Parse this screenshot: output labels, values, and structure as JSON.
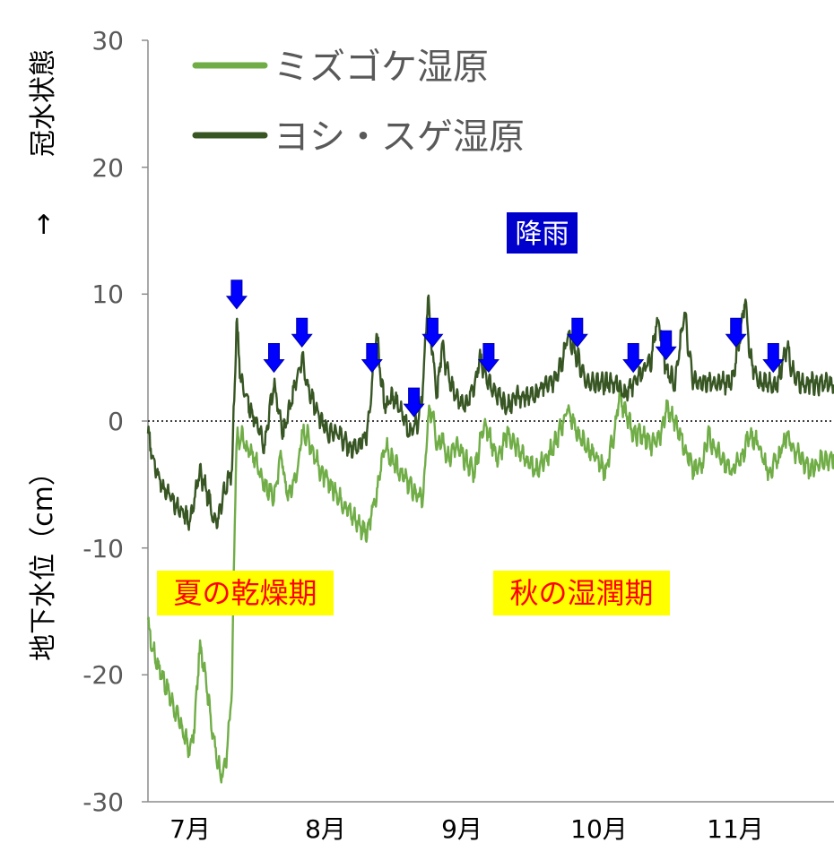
{
  "chart_data": {
    "type": "line",
    "ylabel": "地下水位（cm）",
    "ylabel_arrow": "→",
    "ylabel_top": "冠水状態",
    "ylim": [
      -30,
      30
    ],
    "y_ticks": [
      "30",
      "20",
      "10",
      "0",
      "-10",
      "-20",
      "-30"
    ],
    "x_ticks": [
      {
        "label": "7月",
        "day": 0
      },
      {
        "label": "8月",
        "day": 31
      },
      {
        "label": "9月",
        "day": 62
      },
      {
        "label": "10月",
        "day": 92
      },
      {
        "label": "11月",
        "day": 123
      }
    ],
    "xlim": [
      -7,
      140
    ],
    "zero_line": true,
    "series": [
      {
        "name": "ミズゴケ湿原",
        "color": "#70ad47",
        "noise": 0.9,
        "points": [
          [
            -7,
            -16
          ],
          [
            -6,
            -18
          ],
          [
            -4,
            -20
          ],
          [
            -2,
            -22
          ],
          [
            0,
            -24
          ],
          [
            2,
            -26
          ],
          [
            3,
            -24
          ],
          [
            4,
            -18
          ],
          [
            5,
            -19
          ],
          [
            6,
            -22
          ],
          [
            7,
            -25
          ],
          [
            8,
            -27
          ],
          [
            9,
            -28
          ],
          [
            10,
            -26
          ],
          [
            11,
            -21
          ],
          [
            11.5,
            -10
          ],
          [
            12,
            -1
          ],
          [
            12.5,
            -2
          ],
          [
            13,
            -1
          ],
          [
            14,
            -2
          ],
          [
            16,
            -3
          ],
          [
            18,
            -5
          ],
          [
            20,
            -6
          ],
          [
            21,
            -4
          ],
          [
            21.5,
            -2
          ],
          [
            22,
            -4
          ],
          [
            23,
            -6
          ],
          [
            25,
            -4
          ],
          [
            26,
            -1
          ],
          [
            27,
            -1
          ],
          [
            28,
            -2
          ],
          [
            30,
            -4
          ],
          [
            32,
            -5
          ],
          [
            34,
            -6
          ],
          [
            36,
            -7
          ],
          [
            38,
            -8
          ],
          [
            40,
            -9
          ],
          [
            41,
            -7
          ],
          [
            42,
            -6
          ],
          [
            43,
            -3
          ],
          [
            44,
            -2
          ],
          [
            45,
            -3
          ],
          [
            47,
            -4
          ],
          [
            49,
            -5
          ],
          [
            51,
            -6
          ],
          [
            52,
            -6
          ],
          [
            53,
            0
          ],
          [
            54,
            1
          ],
          [
            55,
            -2
          ],
          [
            56,
            -1
          ],
          [
            57,
            -3
          ],
          [
            59,
            -2
          ],
          [
            61,
            -3
          ],
          [
            63,
            -4
          ],
          [
            64,
            -2
          ],
          [
            65,
            0
          ],
          [
            66,
            -1
          ],
          [
            68,
            -3
          ],
          [
            70,
            -1
          ],
          [
            72,
            -2
          ],
          [
            74,
            -3
          ],
          [
            76,
            -4
          ],
          [
            78,
            -3
          ],
          [
            80,
            -2
          ],
          [
            82,
            0
          ],
          [
            83,
            1
          ],
          [
            85,
            -1
          ],
          [
            87,
            -2
          ],
          [
            89,
            -3
          ],
          [
            91,
            -4
          ],
          [
            93,
            -1
          ],
          [
            94,
            2
          ],
          [
            95,
            1
          ],
          [
            97,
            -1
          ],
          [
            99,
            -1
          ],
          [
            101,
            -2
          ],
          [
            103,
            -1
          ],
          [
            104,
            1
          ],
          [
            106,
            0
          ],
          [
            108,
            -2
          ],
          [
            110,
            -4
          ],
          [
            112,
            -3
          ],
          [
            113,
            -1
          ],
          [
            114,
            -2
          ],
          [
            116,
            -3
          ],
          [
            118,
            -4
          ],
          [
            120,
            -3
          ],
          [
            122,
            -1
          ],
          [
            124,
            -2
          ],
          [
            126,
            -4
          ],
          [
            128,
            -3
          ],
          [
            130,
            -1
          ],
          [
            131,
            -2
          ],
          [
            133,
            -3
          ],
          [
            135,
            -4
          ],
          [
            137,
            -3
          ],
          [
            139,
            -3
          ],
          [
            140,
            -3
          ]
        ]
      },
      {
        "name": "ヨシ・スゲ湿原",
        "color": "#375623",
        "noise": 0.9,
        "points": [
          [
            -7,
            -1
          ],
          [
            -6,
            -3
          ],
          [
            -4,
            -5
          ],
          [
            -2,
            -6
          ],
          [
            0,
            -7
          ],
          [
            2,
            -8
          ],
          [
            3,
            -6
          ],
          [
            4,
            -4
          ],
          [
            5,
            -5
          ],
          [
            6,
            -6
          ],
          [
            7,
            -8
          ],
          [
            8,
            -8
          ],
          [
            9,
            -6
          ],
          [
            10,
            -5
          ],
          [
            11,
            -4
          ],
          [
            11.5,
            2
          ],
          [
            12,
            8
          ],
          [
            12.5,
            5
          ],
          [
            13,
            3
          ],
          [
            14,
            2
          ],
          [
            16,
            0
          ],
          [
            18,
            -2
          ],
          [
            20,
            3
          ],
          [
            21,
            1
          ],
          [
            22,
            -1
          ],
          [
            24,
            2
          ],
          [
            26,
            5
          ],
          [
            27,
            3
          ],
          [
            28,
            2
          ],
          [
            30,
            0
          ],
          [
            32,
            -1
          ],
          [
            34,
            -1
          ],
          [
            36,
            -2
          ],
          [
            38,
            -2
          ],
          [
            40,
            -1
          ],
          [
            41,
            3
          ],
          [
            42,
            7
          ],
          [
            43,
            3
          ],
          [
            44,
            1
          ],
          [
            45,
            2
          ],
          [
            47,
            1
          ],
          [
            49,
            -1
          ],
          [
            51,
            0
          ],
          [
            52,
            3
          ],
          [
            53,
            10
          ],
          [
            54,
            5
          ],
          [
            55,
            2
          ],
          [
            56,
            6
          ],
          [
            57,
            4
          ],
          [
            59,
            2
          ],
          [
            61,
            1
          ],
          [
            63,
            3
          ],
          [
            64,
            5
          ],
          [
            65,
            4
          ],
          [
            66,
            3
          ],
          [
            68,
            2
          ],
          [
            70,
            1
          ],
          [
            72,
            2
          ],
          [
            74,
            2
          ],
          [
            76,
            2
          ],
          [
            78,
            3
          ],
          [
            80,
            3
          ],
          [
            82,
            5
          ],
          [
            83,
            7
          ],
          [
            85,
            5
          ],
          [
            87,
            3
          ],
          [
            89,
            3
          ],
          [
            91,
            3
          ],
          [
            93,
            3
          ],
          [
            94,
            3
          ],
          [
            95,
            2
          ],
          [
            97,
            3
          ],
          [
            99,
            4
          ],
          [
            101,
            5
          ],
          [
            102,
            8
          ],
          [
            103,
            7
          ],
          [
            104,
            4
          ],
          [
            106,
            3
          ],
          [
            108,
            9
          ],
          [
            109,
            5
          ],
          [
            110,
            3
          ],
          [
            112,
            3
          ],
          [
            114,
            3
          ],
          [
            116,
            3
          ],
          [
            118,
            3
          ],
          [
            120,
            7
          ],
          [
            121,
            10
          ],
          [
            122,
            5
          ],
          [
            124,
            3
          ],
          [
            126,
            3
          ],
          [
            128,
            3
          ],
          [
            130,
            6
          ],
          [
            131,
            4
          ],
          [
            133,
            3
          ],
          [
            135,
            3
          ],
          [
            137,
            3
          ],
          [
            139,
            3
          ],
          [
            140,
            3
          ]
        ]
      }
    ],
    "rain_label": "降雨",
    "rain_days": [
      12,
      20,
      26,
      41,
      50,
      54,
      66,
      85,
      97,
      104,
      119,
      127
    ],
    "annotations": [
      {
        "text": "夏の乾燥期"
      },
      {
        "text": "秋の湿潤期"
      }
    ]
  }
}
